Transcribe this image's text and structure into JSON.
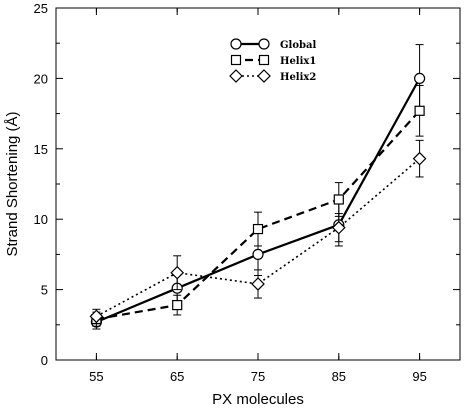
{
  "chart_data": {
    "type": "line",
    "xlabel": "PX molecules",
    "ylabel": "Strand Shortening (Å)",
    "categories": [
      "55",
      "65",
      "75",
      "85",
      "95"
    ],
    "x": [
      55,
      65,
      75,
      85,
      95
    ],
    "xlim": [
      50,
      100
    ],
    "ylim": [
      0,
      25
    ],
    "yticks": [
      0,
      5,
      10,
      15,
      20,
      25
    ],
    "grid": false,
    "legend_position": "top-center",
    "series": [
      {
        "name": "Global",
        "marker": "circle",
        "line_style": "solid",
        "color": "#000000",
        "values": [
          2.7,
          5.1,
          7.5,
          9.6,
          20.0
        ],
        "errors": [
          0.5,
          0.9,
          1.5,
          1.5,
          2.4
        ]
      },
      {
        "name": "Helix1",
        "marker": "square",
        "line_style": "dashed",
        "color": "#000000",
        "values": [
          2.9,
          3.9,
          9.3,
          11.4,
          17.7
        ],
        "errors": [
          0.5,
          0.7,
          1.2,
          1.2,
          1.8
        ]
      },
      {
        "name": "Helix2",
        "marker": "diamond",
        "line_style": "dotted",
        "color": "#000000",
        "values": [
          3.1,
          6.2,
          5.4,
          9.4,
          14.3
        ],
        "errors": [
          0.5,
          1.2,
          1.0,
          1.0,
          1.3
        ]
      }
    ]
  }
}
